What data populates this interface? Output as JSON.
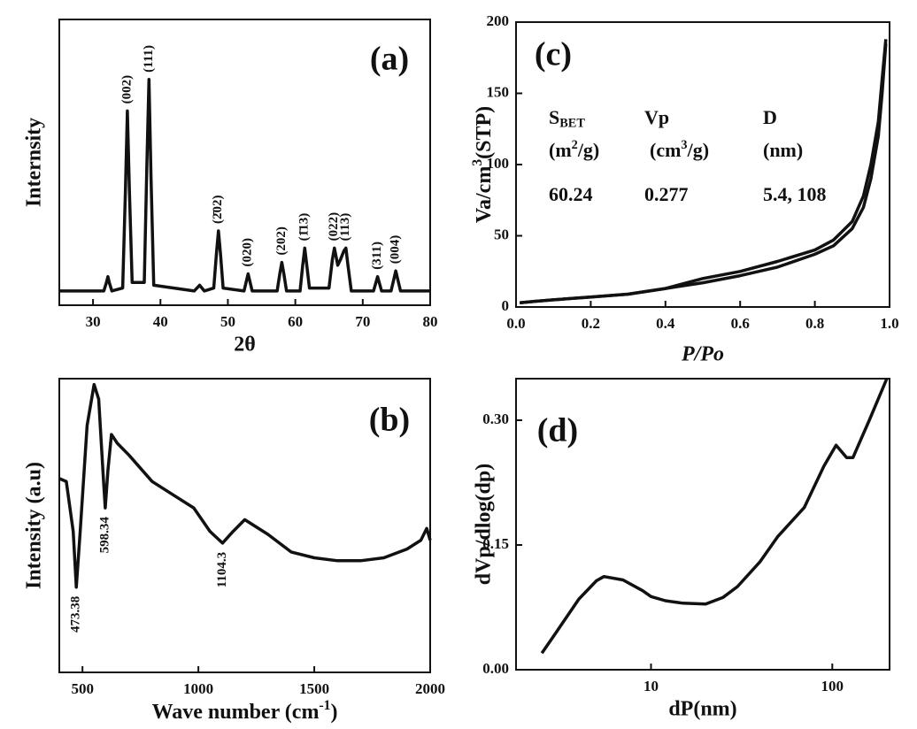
{
  "chart_data": [
    {
      "type": "line",
      "label": "(a)",
      "xlabel": "2θ",
      "ylabel": "Internsity",
      "color": "#111111",
      "x": [
        25,
        31.6,
        32.0,
        32.2,
        32.4,
        32.8,
        34.4,
        34.8,
        35.1,
        35.4,
        35.8,
        37.6,
        38.0,
        38.3,
        38.6,
        39.0,
        45,
        45.8,
        46.5,
        47.9,
        48.3,
        48.6,
        48.9,
        49.3,
        52.4,
        53.0,
        53.6,
        57.3,
        57.7,
        58.0,
        58.3,
        58.7,
        60.7,
        61.1,
        61.4,
        61.7,
        62.1,
        65.0,
        65.5,
        65.8,
        66.3,
        66.7,
        67.2,
        67.5,
        67.8,
        68.3,
        71.6,
        72.2,
        72.8,
        74.2,
        74.6,
        74.9,
        75.2,
        75.6,
        80
      ],
      "values": [
        5,
        5,
        8,
        10,
        8,
        5,
        6,
        40,
        68,
        40,
        8,
        8,
        50,
        79,
        45,
        7,
        5,
        7,
        5,
        6,
        18,
        26,
        18,
        6,
        5,
        11,
        5,
        5,
        11,
        15,
        11,
        5,
        5,
        14,
        20,
        14,
        6,
        6,
        16,
        20,
        14,
        16,
        19,
        20,
        14,
        5,
        5,
        10,
        5,
        5,
        9,
        12,
        9,
        5,
        5
      ],
      "xlim": [
        25,
        80
      ],
      "ylim": [
        0,
        100
      ],
      "xticks": [
        30,
        40,
        50,
        60,
        70,
        80
      ],
      "annotations": [
        "(002)",
        "(111)",
        "(2̄02)",
        "(020)",
        "(202)",
        "(1̄13)",
        "(022)",
        "(113)",
        "(311)",
        "(004)"
      ]
    },
    {
      "type": "line",
      "label": "(b)",
      "xlabel": {
        "pre": "Wave number (cm",
        "sup": "-1",
        "post": ")"
      },
      "ylabel": "Intensity (a.u)",
      "color": "#111111",
      "x": [
        400,
        430,
        460,
        473.38,
        490,
        520,
        550,
        570,
        590,
        598.34,
        610,
        625,
        650,
        700,
        800,
        900,
        980,
        1050,
        1104.3,
        1150,
        1200,
        1300,
        1400,
        1500,
        1600,
        1700,
        1800,
        1900,
        1960,
        1985,
        2000
      ],
      "values": [
        66,
        65,
        48,
        29,
        48,
        84,
        98,
        93,
        66,
        56,
        69,
        81,
        78,
        74,
        65,
        60,
        56,
        48,
        44,
        48,
        52,
        47,
        41,
        39,
        38,
        38,
        39,
        42,
        45,
        49,
        45
      ],
      "xlim": [
        400,
        2000
      ],
      "ylim": [
        0,
        100
      ],
      "xticks": [
        500,
        1000,
        1500,
        2000
      ],
      "annotations": [
        473.38,
        598.34,
        1104.3
      ]
    },
    {
      "type": "line",
      "label": "(c)",
      "xlabel": "P/Po",
      "ylabel": {
        "pre": "Va/cm",
        "sup": "3",
        "post": "(STP)"
      },
      "color": "#111111",
      "x": [
        0.01,
        0.05,
        0.1,
        0.2,
        0.3,
        0.4,
        0.5,
        0.6,
        0.7,
        0.8,
        0.85,
        0.9,
        0.93,
        0.95,
        0.97,
        0.98,
        0.99
      ],
      "series": [
        {
          "color": "#111111",
          "values": [
            3,
            4,
            5,
            7,
            9,
            13,
            17,
            22,
            28,
            37,
            43,
            55,
            70,
            90,
            120,
            150,
            185
          ]
        },
        {
          "color": "#111111",
          "values": [
            3,
            4,
            5,
            7,
            9,
            13,
            20,
            25,
            32,
            40,
            47,
            60,
            78,
            100,
            130,
            160,
            188
          ]
        }
      ],
      "xlim": [
        0,
        1
      ],
      "ylim": [
        0,
        200
      ],
      "xticks": [
        {
          "value": 0,
          "label": "0.0"
        },
        0.2,
        0.4,
        0.6,
        0.8,
        {
          "value": 1,
          "label": "1.0"
        }
      ],
      "yticks": [
        0,
        50,
        100,
        150,
        200
      ],
      "table": {
        "headers": [
          {
            "main": "S",
            "sub": "BET"
          },
          "Vp",
          "D"
        ],
        "units": [
          {
            "pre": "(m",
            "sup": "2",
            "post": "/g)"
          },
          {
            "pre": "(cm",
            "sup": "3",
            "post": "/g)"
          },
          "(nm)"
        ],
        "values": [
          60.24,
          0.277,
          "5.4, 108"
        ]
      }
    },
    {
      "type": "line",
      "label": "(d)",
      "xlabel": "dP(nm)",
      "ylabel": "dVp/dlog(dp)",
      "color": "#111111",
      "xscale": "log",
      "x": [
        2.5,
        3,
        4,
        5,
        5.5,
        7,
        9,
        10,
        12,
        15,
        20,
        25,
        30,
        40,
        50,
        70,
        90,
        105,
        120,
        130,
        160,
        200
      ],
      "values": [
        0.02,
        0.045,
        0.085,
        0.107,
        0.112,
        0.108,
        0.095,
        0.088,
        0.083,
        0.08,
        0.079,
        0.087,
        0.1,
        0.13,
        0.16,
        0.195,
        0.245,
        0.27,
        0.255,
        0.255,
        0.3,
        0.35
      ],
      "xlim": [
        1.8,
        207
      ],
      "ylim": [
        0,
        0.35
      ],
      "xticks": [
        10,
        100
      ],
      "yticks": [
        {
          "value": 0,
          "label": "0.00"
        },
        0.15,
        {
          "value": 0.3,
          "label": "0.30"
        }
      ]
    }
  ]
}
